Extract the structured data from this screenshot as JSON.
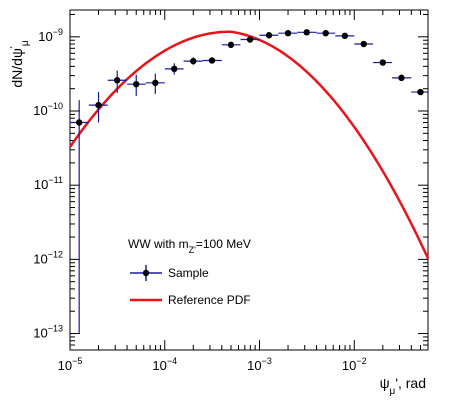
{
  "chart_data": {
    "type": "scatter",
    "xscale": "log",
    "yscale": "log",
    "xlim": [
      1e-05,
      0.06
    ],
    "ylim": [
      6e-14,
      2.3e-09
    ],
    "xlabel": {
      "base": "ψ",
      "sub": "μ",
      "rest": "', rad"
    },
    "ylabel": {
      "base": "dN/dψ",
      "sup": "'",
      "sub": "μ"
    },
    "x_ticks": [
      {
        "base": "10",
        "exp": "−5",
        "value": 1e-05
      },
      {
        "base": "10",
        "exp": "−4",
        "value": 0.0001
      },
      {
        "base": "10",
        "exp": "−3",
        "value": 0.001
      },
      {
        "base": "10",
        "exp": "−2",
        "value": 0.01
      }
    ],
    "y_ticks": [
      {
        "base": "10",
        "exp": "−13",
        "value": 1e-13
      },
      {
        "base": "10",
        "exp": "−12",
        "value": 1e-12
      },
      {
        "base": "10",
        "exp": "−11",
        "value": 1e-11
      },
      {
        "base": "10",
        "exp": "−10",
        "value": 1e-10
      },
      {
        "base": "10",
        "exp": "−9",
        "value": 1e-09
      }
    ],
    "legend": {
      "placement": "bottom-left",
      "header": {
        "text": "WW with m",
        "sub": "Z'",
        "rest": "=100 MeV"
      },
      "entries": [
        {
          "label": "Sample",
          "series": "sample"
        },
        {
          "label": "Reference PDF",
          "series": "reference"
        }
      ]
    },
    "series": [
      {
        "key": "sample",
        "name": "Sample",
        "color": "#1a1aa0",
        "points": [
          {
            "x": 1.25e-05,
            "y": 7e-11,
            "ylo": 1e-13,
            "yhi": 1.4e-10,
            "xlo": 1e-05,
            "xhi": 1.58e-05
          },
          {
            "x": 2e-05,
            "y": 1.2e-10,
            "ylo": 7e-11,
            "yhi": 1.8e-10,
            "xlo": 1.58e-05,
            "xhi": 2.5e-05
          },
          {
            "x": 3.15e-05,
            "y": 2.6e-10,
            "ylo": 1.75e-10,
            "yhi": 3.5e-10,
            "xlo": 2.5e-05,
            "xhi": 4e-05
          },
          {
            "x": 5e-05,
            "y": 2.3e-10,
            "ylo": 1.6e-10,
            "yhi": 3.1e-10,
            "xlo": 4e-05,
            "xhi": 6.3e-05
          },
          {
            "x": 7.95e-05,
            "y": 2.4e-10,
            "ylo": 1.7e-10,
            "yhi": 3.2e-10,
            "xlo": 6.3e-05,
            "xhi": 0.0001
          },
          {
            "x": 0.000126,
            "y": 3.7e-10,
            "ylo": 3.1e-10,
            "yhi": 4.4e-10,
            "xlo": 0.0001,
            "xhi": 0.000158
          },
          {
            "x": 0.0002,
            "y": 4.7e-10,
            "ylo": 4.2e-10,
            "yhi": 5.3e-10,
            "xlo": 0.000158,
            "xhi": 0.00025
          },
          {
            "x": 0.000315,
            "y": 4.8e-10,
            "ylo": 4.4e-10,
            "yhi": 5.3e-10,
            "xlo": 0.00025,
            "xhi": 0.0004
          },
          {
            "x": 0.0005,
            "y": 7.8e-10,
            "ylo": 7.3e-10,
            "yhi": 8.4e-10,
            "xlo": 0.0004,
            "xhi": 0.00063
          },
          {
            "x": 0.000795,
            "y": 9.2e-10,
            "ylo": 8.7e-10,
            "yhi": 9.8e-10,
            "xlo": 0.00063,
            "xhi": 0.001
          },
          {
            "x": 0.00126,
            "y": 1.05e-09,
            "ylo": 1e-09,
            "yhi": 1.1e-09,
            "xlo": 0.001,
            "xhi": 0.00158
          },
          {
            "x": 0.002,
            "y": 1.12e-09,
            "ylo": 1.07e-09,
            "yhi": 1.17e-09,
            "xlo": 0.00158,
            "xhi": 0.0025
          },
          {
            "x": 0.00315,
            "y": 1.15e-09,
            "ylo": 1.1e-09,
            "yhi": 1.2e-09,
            "xlo": 0.0025,
            "xhi": 0.004
          },
          {
            "x": 0.005,
            "y": 1.12e-09,
            "ylo": 1.07e-09,
            "yhi": 1.17e-09,
            "xlo": 0.004,
            "xhi": 0.0063
          },
          {
            "x": 0.00795,
            "y": 1.03e-09,
            "ylo": 9.8e-10,
            "yhi": 1.08e-09,
            "xlo": 0.0063,
            "xhi": 0.01
          },
          {
            "x": 0.0126,
            "y": 8e-10,
            "ylo": 7.6e-10,
            "yhi": 8.4e-10,
            "xlo": 0.01,
            "xhi": 0.0158
          },
          {
            "x": 0.02,
            "y": 4.5e-10,
            "ylo": 4.2e-10,
            "yhi": 4.8e-10,
            "xlo": 0.0158,
            "xhi": 0.025
          },
          {
            "x": 0.0315,
            "y": 2.8e-10,
            "ylo": 2.6e-10,
            "yhi": 3e-10,
            "xlo": 0.025,
            "xhi": 0.04
          },
          {
            "x": 0.05,
            "y": 1.8e-10,
            "ylo": 1.65e-10,
            "yhi": 1.95e-10,
            "xlo": 0.04,
            "xhi": 0.06
          }
        ]
      },
      {
        "key": "reference",
        "name": "Reference PDF",
        "color": "#e8141a"
      }
    ]
  }
}
